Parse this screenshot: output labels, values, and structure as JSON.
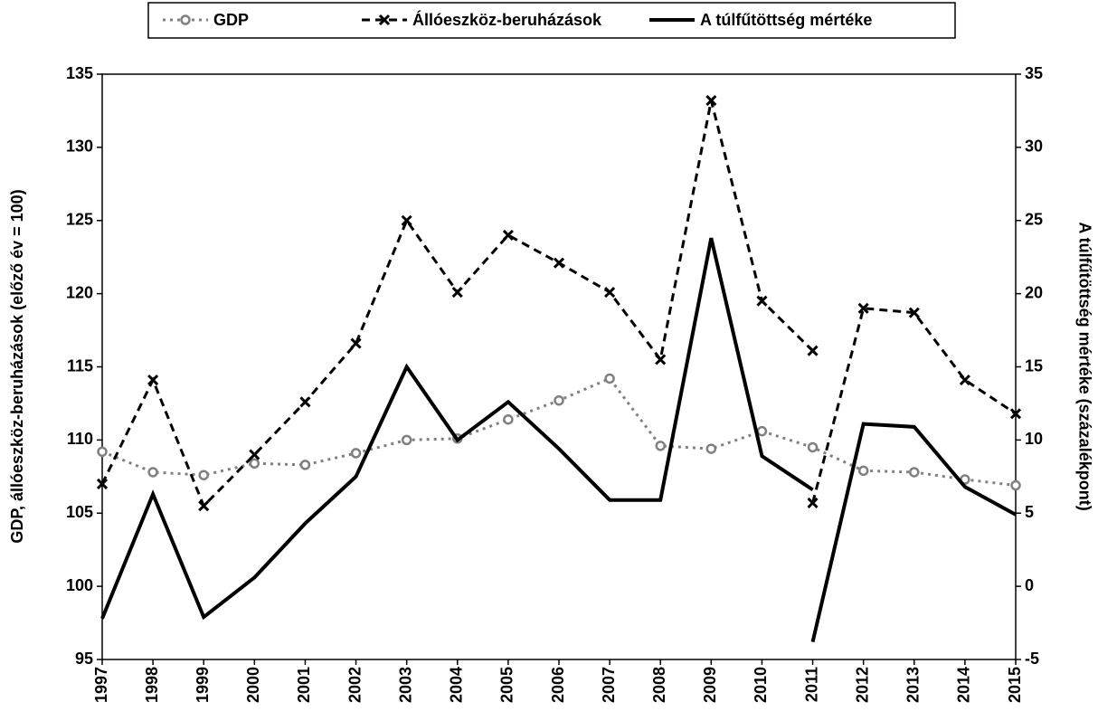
{
  "chart_data": {
    "type": "line",
    "xlim": [
      1997,
      2015
    ],
    "xticks": [
      1997,
      1998,
      1999,
      2000,
      2001,
      2002,
      2003,
      2004,
      2005,
      2006,
      2007,
      2008,
      2009,
      2010,
      2011,
      2012,
      2013,
      2014,
      2015
    ],
    "ylim": [
      95,
      135
    ],
    "yticks": [
      95,
      100,
      105,
      110,
      115,
      120,
      125,
      130,
      135
    ],
    "y2lim": [
      -5,
      35
    ],
    "y2ticks": [
      -5,
      0,
      5,
      10,
      15,
      20,
      25,
      30,
      35
    ],
    "ylabel": "GDP, állóeszköz-beruházások (előző év = 100)",
    "y2label": "A túlfűtöttség mértéke (százalékpont)",
    "grid": false,
    "legend": "top",
    "series": [
      {
        "name": "GDP",
        "color": "#808080",
        "style": "dotted",
        "marker": "circle",
        "x": [
          1997,
          1998,
          1999,
          2000,
          2001,
          2002,
          2003,
          2004,
          2005,
          2006,
          2007,
          2008,
          2009,
          2010,
          2011,
          2012,
          2013,
          2014,
          2015
        ],
        "values": [
          109.2,
          107.8,
          107.6,
          108.4,
          108.3,
          109.1,
          110.0,
          110.1,
          111.4,
          112.7,
          114.2,
          109.6,
          109.4,
          110.6,
          109.5,
          107.9,
          107.8,
          107.3,
          106.9
        ]
      },
      {
        "name": "Állóeszköz-beruházások",
        "color": "#000000",
        "style": "dashed",
        "marker": "x",
        "x": [
          1997,
          1998,
          1999,
          2000,
          2001,
          2002,
          2003,
          2004,
          2005,
          2006,
          2007,
          2008,
          2009,
          2010,
          2011,
          2011,
          2011,
          2012,
          2013,
          2014,
          2015
        ],
        "values": [
          107.0,
          114.1,
          105.5,
          109.0,
          112.6,
          116.6,
          125.0,
          120.1,
          124.0,
          122.1,
          120.1,
          115.5,
          133.2,
          119.5,
          116.1,
          null,
          105.7,
          119.0,
          118.7,
          114.1,
          111.8
        ]
      },
      {
        "name": "A túlfűtöttség mértéke",
        "color": "#000000",
        "style": "solid",
        "marker": "none",
        "axis": "y2",
        "x": [
          1997,
          1998,
          1999,
          2000,
          2001,
          2002,
          2003,
          2004,
          2005,
          2006,
          2007,
          2008,
          2009,
          2010,
          2011,
          2011,
          2011,
          2012,
          2013,
          2014,
          2015
        ],
        "values": [
          -2.2,
          6.3,
          -2.1,
          0.6,
          4.3,
          7.5,
          15.0,
          10.0,
          12.6,
          9.4,
          5.9,
          5.9,
          23.8,
          8.9,
          6.6,
          null,
          -3.8,
          11.1,
          10.9,
          6.8,
          4.9
        ]
      }
    ]
  }
}
